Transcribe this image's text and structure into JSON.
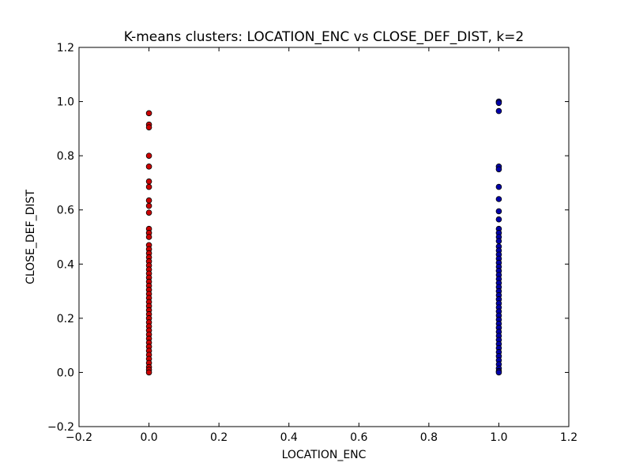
{
  "chart_data": {
    "type": "scatter",
    "title": "K-means clusters: LOCATION_ENC vs CLOSE_DEF_DIST, k=2",
    "xlabel": "LOCATION_ENC",
    "ylabel": "CLOSE_DEF_DIST",
    "xlim": [
      -0.2,
      1.2
    ],
    "ylim": [
      -0.2,
      1.2
    ],
    "xticks": [
      "−0.2",
      "0.0",
      "0.2",
      "0.4",
      "0.6",
      "0.8",
      "1.0",
      "1.2"
    ],
    "yticks": [
      "−0.2",
      "0.0",
      "0.2",
      "0.4",
      "0.6",
      "0.8",
      "1.0",
      "1.2"
    ],
    "xtick_values": [
      -0.2,
      0.0,
      0.2,
      0.4,
      0.6,
      0.8,
      1.0,
      1.2
    ],
    "ytick_values": [
      -0.2,
      0.0,
      0.2,
      0.4,
      0.6,
      0.8,
      1.0,
      1.2
    ],
    "grid": false,
    "series": [
      {
        "color": "#cc0000",
        "x": 0.0,
        "y": [
          0.957,
          0.915,
          0.905,
          0.8,
          0.76,
          0.705,
          0.685,
          0.635,
          0.615,
          0.59,
          0.53,
          0.515,
          0.5,
          0.47,
          0.455,
          0.44,
          0.425,
          0.41,
          0.395,
          0.38,
          0.365,
          0.35,
          0.335,
          0.32,
          0.305,
          0.29,
          0.275,
          0.26,
          0.245,
          0.23,
          0.215,
          0.2,
          0.185,
          0.17,
          0.155,
          0.14,
          0.125,
          0.11,
          0.095,
          0.08,
          0.065,
          0.05,
          0.035,
          0.02,
          0.01,
          0.0
        ]
      },
      {
        "color": "#0000aa",
        "x": 1.0,
        "y": [
          1.0,
          0.995,
          0.965,
          0.76,
          0.75,
          0.685,
          0.64,
          0.595,
          0.565,
          0.53,
          0.515,
          0.5,
          0.485,
          0.465,
          0.45,
          0.435,
          0.42,
          0.405,
          0.39,
          0.375,
          0.36,
          0.345,
          0.33,
          0.315,
          0.3,
          0.285,
          0.27,
          0.255,
          0.24,
          0.225,
          0.21,
          0.195,
          0.18,
          0.165,
          0.15,
          0.135,
          0.12,
          0.105,
          0.09,
          0.075,
          0.06,
          0.045,
          0.03,
          0.015,
          0.005,
          0.0
        ]
      }
    ]
  }
}
